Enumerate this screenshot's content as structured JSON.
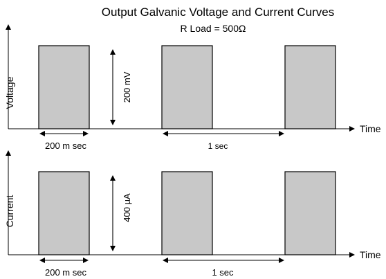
{
  "title": "Output Galvanic Voltage and Current Curves",
  "subtitle": "R Load = 500Ω",
  "top_panel": {
    "y_label": "Voltage",
    "x_label": "Time",
    "amplitude_label": "200 mV",
    "pulse_width_label": "200 m sec",
    "period_label": "1 sec"
  },
  "bottom_panel": {
    "y_label": "Current",
    "x_label": "Time",
    "amplitude_label": "400 µA",
    "pulse_width_label": "200 m sec",
    "period_label": "1 sec"
  },
  "colors": {
    "pulse_fill": "#c8c8c8",
    "stroke": "#000000",
    "background": "#ffffff"
  }
}
